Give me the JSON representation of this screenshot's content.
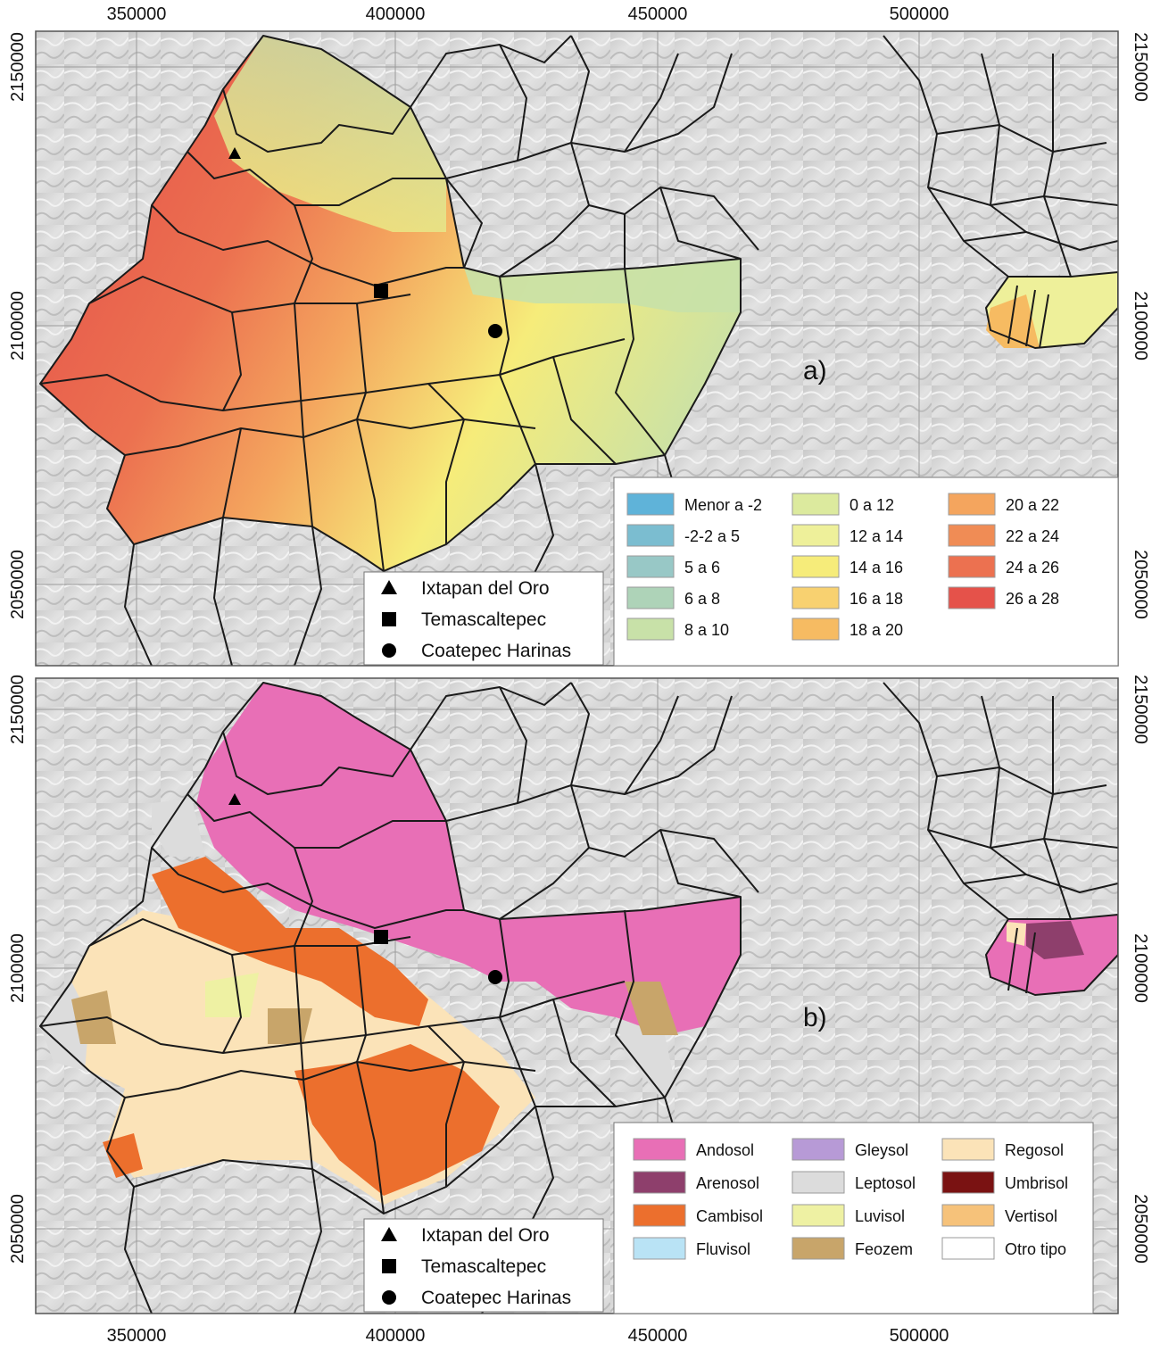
{
  "x_ticks": [
    "350000",
    "400000",
    "450000",
    "500000"
  ],
  "y_ticks": [
    "2150000",
    "2100000",
    "2050000"
  ],
  "location_legend": [
    {
      "symbol": "triangle",
      "label": "Ixtapan del Oro"
    },
    {
      "symbol": "square",
      "label": "Temascaltepec"
    },
    {
      "symbol": "circle",
      "label": "Coatepec Harinas"
    }
  ],
  "panel_a": {
    "label": "a)",
    "legend_items": [
      {
        "label": "Menor a -2",
        "color": "#5fb3d9"
      },
      {
        "label": "-2-2 a 5",
        "color": "#7bbdd0"
      },
      {
        "label": "5 a 6",
        "color": "#98c8c6"
      },
      {
        "label": "6 a 8",
        "color": "#aed3b8"
      },
      {
        "label": "8 a 10",
        "color": "#c8e1a8"
      },
      {
        "label": "0 a 12",
        "color": "#dcea9e"
      },
      {
        "label": "12 a 14",
        "color": "#eef09a"
      },
      {
        "label": "14 a 16",
        "color": "#f6ec7a"
      },
      {
        "label": "16 a 18",
        "color": "#f8d170"
      },
      {
        "label": "18 a 20",
        "color": "#f6bb62"
      },
      {
        "label": "20 a 22",
        "color": "#f4a55e"
      },
      {
        "label": "22 a 24",
        "color": "#f08c55"
      },
      {
        "label": "24 a 26",
        "color": "#ec7150"
      },
      {
        "label": "26 a 28",
        "color": "#e5524a"
      }
    ]
  },
  "panel_b": {
    "label": "b)",
    "legend_items": [
      {
        "label": "Andosol",
        "color": "#e86fb6"
      },
      {
        "label": "Arenosol",
        "color": "#8e3f6c"
      },
      {
        "label": "Cambisol",
        "color": "#ec6f2d"
      },
      {
        "label": "Fluvisol",
        "color": "#b9e3f5"
      },
      {
        "label": "Gleysol",
        "color": "#b79ad6"
      },
      {
        "label": "Leptosol",
        "color": "#dcdcdc"
      },
      {
        "label": "Luvisol",
        "color": "#eef1a3"
      },
      {
        "label": "Feozem",
        "color": "#c8a56a"
      },
      {
        "label": "Regosol",
        "color": "#fbe3b8"
      },
      {
        "label": "Umbrisol",
        "color": "#7a1212"
      },
      {
        "label": "Vertisol",
        "color": "#f6c27a"
      },
      {
        "label": "Otro tipo",
        "color": "#ffffff"
      }
    ]
  }
}
